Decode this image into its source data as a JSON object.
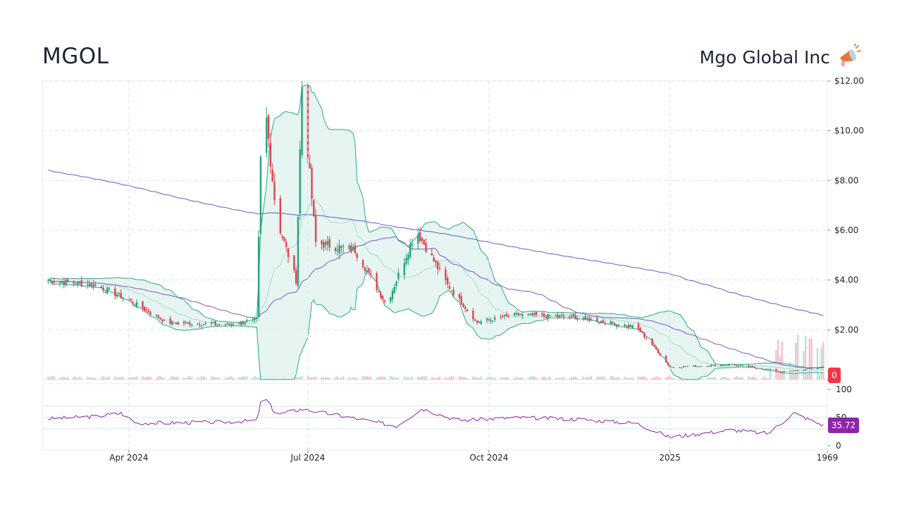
{
  "header": {
    "ticker": "MGOL",
    "company_name": "Mgo Global Inc"
  },
  "icons": {
    "company_icon": "megaphone-icon"
  },
  "colors": {
    "up": "#26a27a",
    "down": "#e0424f",
    "band_line": "#2aa88a",
    "band_fill": "#e2f3f0",
    "sma_line": "#5b5fc7",
    "rsi_line": "#8e24aa",
    "price_badge": "#f23645",
    "rsi_badge": "#8e24aa",
    "grid": "#d5e6ea"
  },
  "chart_data": [
    {
      "type": "candlestick",
      "title": "",
      "y_ticks": [
        "$12.00",
        "$10.00",
        "$8.00",
        "$6.00",
        "$4.00",
        "$2.00",
        "0"
      ],
      "y_tick_values": [
        12,
        10,
        8,
        6,
        4,
        2,
        0
      ],
      "ylim": [
        0,
        12
      ],
      "x_ticks": [
        "Apr 2024",
        "Jul 2024",
        "Oct 2024",
        "2025",
        "1969"
      ],
      "last_price_label": "0",
      "grid": true,
      "overlays": [
        "bollinger_bands",
        "moving_average_short",
        "moving_average_long",
        "volume"
      ],
      "approx_close_path": [
        {
          "x": "2024-02-20",
          "y": 4.0
        },
        {
          "x": "2024-03-15",
          "y": 3.8
        },
        {
          "x": "2024-04-01",
          "y": 3.2
        },
        {
          "x": "2024-04-20",
          "y": 2.3
        },
        {
          "x": "2024-05-20",
          "y": 2.2
        },
        {
          "x": "2024-06-05",
          "y": 2.4
        },
        {
          "x": "2024-06-08",
          "y": 12.0
        },
        {
          "x": "2024-06-15",
          "y": 6.5
        },
        {
          "x": "2024-06-25",
          "y": 4.0
        },
        {
          "x": "2024-06-28",
          "y": 11.8
        },
        {
          "x": "2024-07-05",
          "y": 5.5
        },
        {
          "x": "2024-07-25",
          "y": 5.2
        },
        {
          "x": "2024-08-10",
          "y": 3.0
        },
        {
          "x": "2024-08-25",
          "y": 6.0
        },
        {
          "x": "2024-09-10",
          "y": 3.8
        },
        {
          "x": "2024-09-25",
          "y": 2.3
        },
        {
          "x": "2024-10-15",
          "y": 2.6
        },
        {
          "x": "2024-11-15",
          "y": 2.5
        },
        {
          "x": "2024-12-15",
          "y": 2.1
        },
        {
          "x": "2024-12-25",
          "y": 1.2
        },
        {
          "x": "2025-01-01",
          "y": 0.5
        },
        {
          "x": "2025-02-01",
          "y": 0.6
        },
        {
          "x": "2025-03-01",
          "y": 0.3
        },
        {
          "x": "2025-03-20",
          "y": 0.5
        }
      ]
    },
    {
      "type": "line",
      "title": "",
      "y_ticks": [
        "100",
        "50",
        "0"
      ],
      "y_tick_values": [
        100,
        50,
        0
      ],
      "ylim": [
        0,
        100
      ],
      "last_value_label": "35.72",
      "series": [
        {
          "values": [
            {
              "x": "2024-02-20",
              "y": 48
            },
            {
              "x": "2024-03-15",
              "y": 52
            },
            {
              "x": "2024-03-28",
              "y": 58
            },
            {
              "x": "2024-04-05",
              "y": 40
            },
            {
              "x": "2024-05-20",
              "y": 42
            },
            {
              "x": "2024-06-05",
              "y": 45
            },
            {
              "x": "2024-06-08",
              "y": 92
            },
            {
              "x": "2024-06-15",
              "y": 55
            },
            {
              "x": "2024-06-28",
              "y": 65
            },
            {
              "x": "2024-07-20",
              "y": 52
            },
            {
              "x": "2024-08-15",
              "y": 35
            },
            {
              "x": "2024-08-28",
              "y": 66
            },
            {
              "x": "2024-09-15",
              "y": 45
            },
            {
              "x": "2024-10-15",
              "y": 50
            },
            {
              "x": "2024-11-15",
              "y": 47
            },
            {
              "x": "2024-12-15",
              "y": 40
            },
            {
              "x": "2025-01-01",
              "y": 15
            },
            {
              "x": "2025-02-01",
              "y": 28
            },
            {
              "x": "2025-02-20",
              "y": 22
            },
            {
              "x": "2025-03-05",
              "y": 58
            },
            {
              "x": "2025-03-20",
              "y": 36
            }
          ]
        }
      ]
    }
  ]
}
